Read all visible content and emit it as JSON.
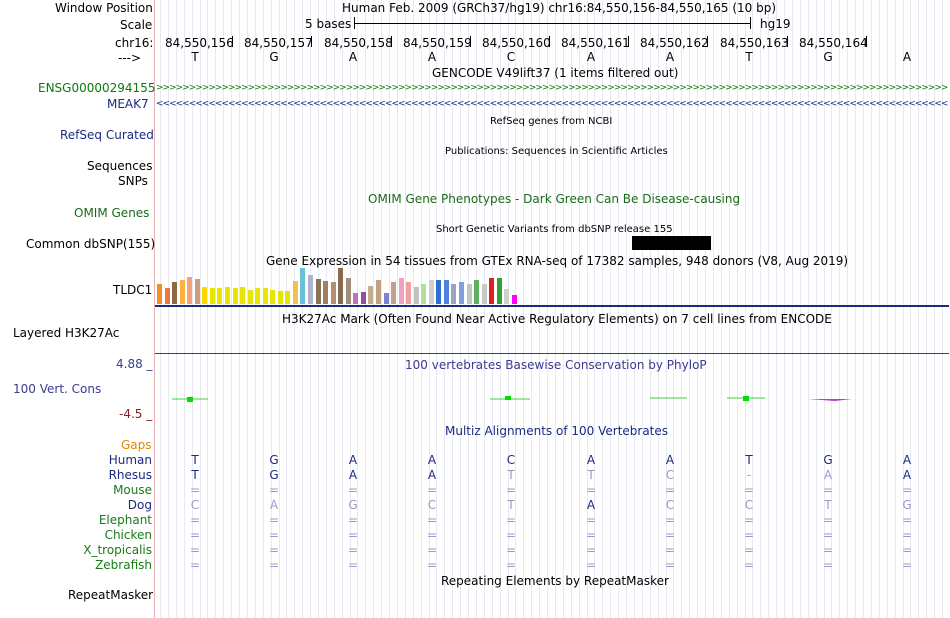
{
  "header": {
    "window_position_label": "Window Position",
    "scale_label": "Scale",
    "chrom_label": "chr16:",
    "arrow_label": "--->",
    "assembly_title": "Human Feb. 2009 (GRCh37/hg19)   chr16:84,550,156-84,550,165 (10 bp)",
    "scale_text": "5 bases",
    "scale_db": "hg19"
  },
  "positions": [
    "84,550,156",
    "84,550,157",
    "84,550,158",
    "84,550,159",
    "84,550,160",
    "84,550,161",
    "84,550,162",
    "84,550,163",
    "84,550,164"
  ],
  "sequence": [
    "T",
    "G",
    "A",
    "A",
    "C",
    "A",
    "A",
    "T",
    "G",
    "A"
  ],
  "tracks": {
    "gencode_title": "GENCODE V49lift37 (1 items filtered out)",
    "gencode_item1": "ENSG00000294155",
    "gencode_item2": "MEAK7",
    "refseq_label": "RefSeq Curated",
    "refseq_title": "RefSeq genes from NCBI",
    "pubs_label": "Sequences",
    "pubs_title": "Publications: Sequences in Scientific Articles",
    "snps_label": "SNPs",
    "omim_title": "OMIM Gene Phenotypes - Dark Green Can Be Disease-causing",
    "omim_label": "OMIM Genes",
    "dbsnp_title": "Short Genetic Variants from dbSNP release 155",
    "dbsnp_label": "Common dbSNP(155)",
    "gtex_title": "Gene Expression in 54 tissues from GTEx RNA-seq of 17382 samples, 948 donors (V8, Aug 2019)",
    "gtex_label": "TLDC1",
    "h3k27ac_title": "H3K27Ac Mark (Often Found Near Active Regulatory Elements) on 7 cell lines from ENCODE",
    "h3k27ac_label": "Layered H3K27Ac",
    "cons_title": "100 vertebrates Basewise Conservation by PhyloP",
    "cons_label": "100 Vert. Cons",
    "cons_max": "4.88 _",
    "cons_min": "-4.5 _",
    "multiz_title": "Multiz Alignments of 100 Vertebrates",
    "gaps_label": "Gaps",
    "rmsk_title": "Repeating Elements by RepeatMasker",
    "rmsk_label": "RepeatMasker"
  },
  "gtex_bars": [
    {
      "color": "#f28c28",
      "level": 0.55
    },
    {
      "color": "#e87a3c",
      "level": 0.45
    },
    {
      "color": "#8b6a46",
      "level": 0.62
    },
    {
      "color": "#fbb040",
      "level": 0.68
    },
    {
      "color": "#f6a27a",
      "level": 0.75
    },
    {
      "color": "#c8a07a",
      "level": 0.7
    },
    {
      "color": "#ffd700",
      "level": 0.48
    },
    {
      "color": "#e6e600",
      "level": 0.45
    },
    {
      "color": "#e6e600",
      "level": 0.45
    },
    {
      "color": "#e6e600",
      "level": 0.48
    },
    {
      "color": "#e6e600",
      "level": 0.45
    },
    {
      "color": "#e6e600",
      "level": 0.48
    },
    {
      "color": "#e6e600",
      "level": 0.4
    },
    {
      "color": "#e6e600",
      "level": 0.45
    },
    {
      "color": "#e6e600",
      "level": 0.45
    },
    {
      "color": "#e6e600",
      "level": 0.38
    },
    {
      "color": "#e6e600",
      "level": 0.35
    },
    {
      "color": "#e6e600",
      "level": 0.35
    },
    {
      "color": "#f0c050",
      "level": 0.65
    },
    {
      "color": "#66c2d6",
      "level": 1.0
    },
    {
      "color": "#b0b0d0",
      "level": 0.8
    },
    {
      "color": "#8b7355",
      "level": 0.7
    },
    {
      "color": "#a08060",
      "level": 0.65
    },
    {
      "color": "#b09070",
      "level": 0.6
    },
    {
      "color": "#8b6b4e",
      "level": 1.0
    },
    {
      "color": "#a0907a",
      "level": 0.72
    },
    {
      "color": "#c070c0",
      "level": 0.3
    },
    {
      "color": "#9050a0",
      "level": 0.32
    },
    {
      "color": "#c0b090",
      "level": 0.5
    },
    {
      "color": "#c0a080",
      "level": 0.68
    },
    {
      "color": "#8080d0",
      "level": 0.3
    },
    {
      "color": "#c0a090",
      "level": 0.6
    },
    {
      "color": "#f0a0c0",
      "level": 0.72
    },
    {
      "color": "#f0a0a0",
      "level": 0.62
    },
    {
      "color": "#c0c0c0",
      "level": 0.48
    },
    {
      "color": "#b0e0a0",
      "level": 0.55
    },
    {
      "color": "#d0d0d0",
      "level": 0.68
    },
    {
      "color": "#3070d0",
      "level": 0.68
    },
    {
      "color": "#5080e0",
      "level": 0.68
    },
    {
      "color": "#a0a0c0",
      "level": 0.55
    },
    {
      "color": "#80a0e0",
      "level": 0.6
    },
    {
      "color": "#c0c8c0",
      "level": 0.55
    },
    {
      "color": "#60b060",
      "level": 0.68
    },
    {
      "color": "#c8c8c8",
      "level": 0.55
    },
    {
      "color": "#e02020",
      "level": 0.72
    },
    {
      "color": "#30a030",
      "level": 0.72
    },
    {
      "color": "#d0d0d0",
      "level": 0.42
    },
    {
      "color": "#ff00ff",
      "level": 0.25
    }
  ],
  "species": [
    {
      "name": "Human",
      "color": "#1a2a80",
      "bases": [
        "T",
        "G",
        "A",
        "A",
        "C",
        "A",
        "A",
        "T",
        "G",
        "A"
      ],
      "base_colors": [
        "#1a2a80",
        "#1a2a80",
        "#1a2a80",
        "#1a2a80",
        "#1a2a80",
        "#1a2a80",
        "#1a2a80",
        "#1a2a80",
        "#1a2a80",
        "#1a2a80"
      ]
    },
    {
      "name": "Rhesus",
      "color": "#1a2a80",
      "bases": [
        "T",
        "G",
        "A",
        "A",
        "T",
        "T",
        "C",
        "-",
        "A",
        "A"
      ],
      "base_colors": [
        "#1a2a80",
        "#1a2a80",
        "#1a2a80",
        "#1a2a80",
        "#9a9ac8",
        "#9a9ac8",
        "#9a9ac8",
        "#9a9ac8",
        "#9a9ac8",
        "#1a2a80"
      ]
    },
    {
      "name": "Mouse",
      "color": "#1a7a1a",
      "bases": [
        "=",
        "=",
        "=",
        "=",
        "=",
        "=",
        "=",
        "=",
        "=",
        "="
      ],
      "base_colors": [
        "#9a9ac8",
        "#9a9ac8",
        "#9a9ac8",
        "#9a9ac8",
        "#9a9ac8",
        "#9a9ac8",
        "#9a9ac8",
        "#9a9ac8",
        "#9a9ac8",
        "#9a9ac8"
      ]
    },
    {
      "name": "Dog",
      "color": "#1a2a80",
      "bases": [
        "C",
        "A",
        "G",
        "C",
        "T",
        "A",
        "C",
        "C",
        "T",
        "G"
      ],
      "base_colors": [
        "#9a9ac8",
        "#9a9ac8",
        "#9a9ac8",
        "#9a9ac8",
        "#9a9ac8",
        "#1a2a80",
        "#9a9ac8",
        "#9a9ac8",
        "#9a9ac8",
        "#9a9ac8"
      ]
    },
    {
      "name": "Elephant",
      "color": "#1a7a1a",
      "bases": [
        "=",
        "=",
        "=",
        "=",
        "=",
        "=",
        "=",
        "=",
        "=",
        "="
      ],
      "base_colors": [
        "#9a9ac8",
        "#9a9ac8",
        "#9a9ac8",
        "#9a9ac8",
        "#9a9ac8",
        "#9a9ac8",
        "#9a9ac8",
        "#9a9ac8",
        "#9a9ac8",
        "#9a9ac8"
      ]
    },
    {
      "name": "Chicken",
      "color": "#1a7a1a",
      "bases": [
        "=",
        "=",
        "=",
        "=",
        "=",
        "=",
        "=",
        "=",
        "=",
        "="
      ],
      "base_colors": [
        "#9a9ac8",
        "#9a9ac8",
        "#9a9ac8",
        "#9a9ac8",
        "#9a9ac8",
        "#9a9ac8",
        "#9a9ac8",
        "#9a9ac8",
        "#9a9ac8",
        "#9a9ac8"
      ]
    },
    {
      "name": "X_tropicalis",
      "color": "#1a7a1a",
      "bases": [
        "=",
        "=",
        "=",
        "=",
        "=",
        "=",
        "=",
        "=",
        "=",
        "="
      ],
      "base_colors": [
        "#9a9ac8",
        "#9a9ac8",
        "#9a9ac8",
        "#9a9ac8",
        "#9a9ac8",
        "#9a9ac8",
        "#9a9ac8",
        "#9a9ac8",
        "#9a9ac8",
        "#9a9ac8"
      ]
    },
    {
      "name": "Zebrafish",
      "color": "#1a7a1a",
      "bases": [
        "=",
        "=",
        "=",
        "=",
        "=",
        "=",
        "=",
        "=",
        "=",
        "="
      ],
      "base_colors": [
        "#9a9ac8",
        "#9a9ac8",
        "#9a9ac8",
        "#9a9ac8",
        "#9a9ac8",
        "#9a9ac8",
        "#9a9ac8",
        "#9a9ac8",
        "#9a9ac8",
        "#9a9ac8"
      ]
    }
  ],
  "colors": {
    "gencode": "#0b7a0b",
    "meak7": "#1a2a80",
    "refseq": "#1a2a80",
    "omim": "#1a6a1a",
    "cons_title": "#3a3a90",
    "cons_max": "#3a3a90",
    "cons_min": "#8a2020",
    "gaps": "#e08a00",
    "h3k27ac_line": "#8a2030",
    "gtex_line": "#1a2a80"
  }
}
